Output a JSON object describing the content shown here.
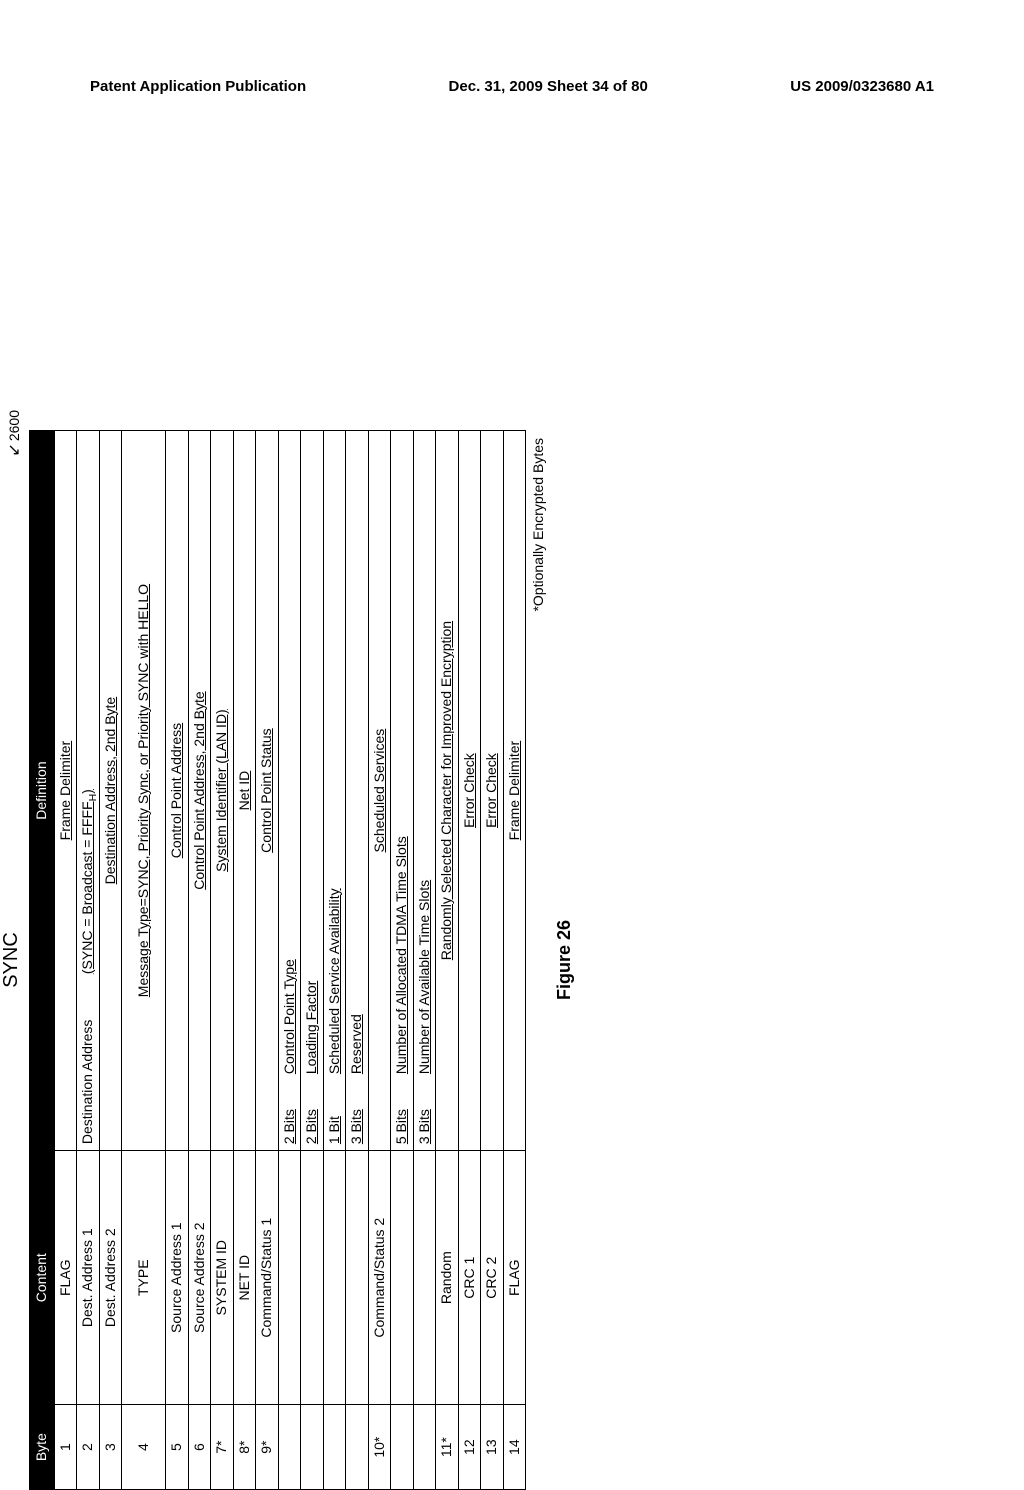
{
  "header": {
    "left": "Patent Application Publication",
    "center": "Dec. 31, 2009  Sheet 34 of 80",
    "right": "US 2009/0323680 A1"
  },
  "figure": {
    "title": "SYNC",
    "ref": "2600",
    "caption": "Figure 26",
    "footnote": "*Optionally Encrypted Bytes"
  },
  "table": {
    "head": {
      "c1": "Byte",
      "c2": "Content",
      "c3": "Definition"
    },
    "rows": [
      {
        "byte": "1",
        "content": "FLAG",
        "def": "Frame Delimiter"
      },
      {
        "byte": "2",
        "content": "Dest. Address 1",
        "defL": "Destination Address",
        "defR": "(SYNC = Broadcast = FFFF",
        "defRsub": "H",
        "defRsuffix": ")"
      },
      {
        "byte": "3",
        "content": "Dest. Address 2",
        "def": "Destination Address, 2nd Byte"
      },
      {
        "byte": "4",
        "content": "TYPE",
        "def": "Message Type=SYNC, Priority Sync, or Priority SYNC with HELLO",
        "tall": true
      },
      {
        "byte": "5",
        "content": "Source Address 1",
        "def": "Control Point Address"
      },
      {
        "byte": "6",
        "content": "Source Address 2",
        "def": "Control Point Address, 2nd Byte"
      },
      {
        "byte": "7*",
        "content": "SYSTEM ID",
        "def": "System Identifier (LAN ID)"
      },
      {
        "byte": "8*",
        "content": "NET ID",
        "def": "Net ID"
      },
      {
        "byte": "9*",
        "content": "Command/Status 1",
        "def": "Control Point Status",
        "u": true
      },
      {
        "byte": "",
        "content": "",
        "bits": "2 Bits",
        "bitsDef": "Control Point Type"
      },
      {
        "byte": "",
        "content": "",
        "bits": "2 Bits",
        "bitsDef": "Loading Factor"
      },
      {
        "byte": "",
        "content": "",
        "bits": "1 Bit",
        "bitsDef": "Scheduled Service Availability"
      },
      {
        "byte": "",
        "content": "",
        "bits": "3 Bits",
        "bitsDef": "Reserved"
      },
      {
        "byte": "10*",
        "content": "Command/Status 2",
        "def": "Scheduled Services",
        "u": true
      },
      {
        "byte": "",
        "content": "",
        "bits": "5 Bits",
        "bitsDef": "Number of Allocated TDMA Time Slots"
      },
      {
        "byte": "",
        "content": "",
        "bits": "3 Bits",
        "bitsDef": "Number of Available Time Slots"
      },
      {
        "byte": "11*",
        "content": "Random",
        "def": "Randomly Selected Character for Improved Encryption"
      },
      {
        "byte": "12",
        "content": "CRC 1",
        "def": "Error Check"
      },
      {
        "byte": "13",
        "content": "CRC 2",
        "def": "Error Check"
      },
      {
        "byte": "14",
        "content": "FLAG",
        "def": "Frame Delimiter"
      }
    ]
  }
}
